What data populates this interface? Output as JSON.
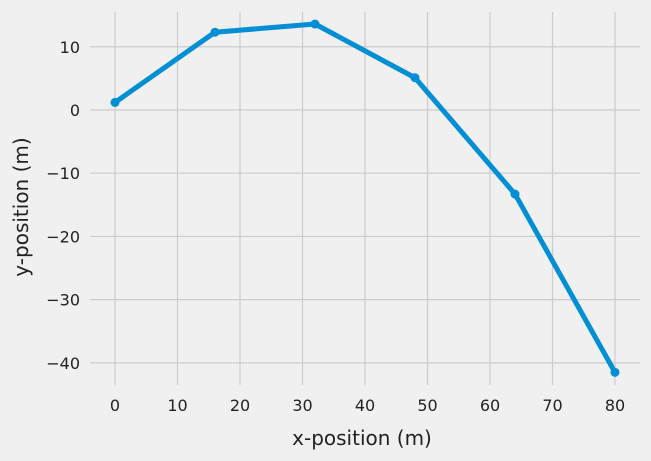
{
  "chart_data": {
    "type": "line",
    "title": "",
    "xlabel": "x-position (m)",
    "ylabel": "y-position (m)",
    "xlim": [
      -4,
      84
    ],
    "ylim": [
      -43.5,
      15.5
    ],
    "xticks": [
      0,
      10,
      20,
      30,
      40,
      50,
      60,
      70,
      80
    ],
    "yticks": [
      10,
      0,
      -10,
      -20,
      -30,
      -40
    ],
    "xtick_labels": [
      "0",
      "10",
      "20",
      "30",
      "40",
      "50",
      "60",
      "70",
      "80"
    ],
    "ytick_labels": [
      "10",
      "0",
      "−10",
      "−20",
      "−30",
      "−40"
    ],
    "grid": true,
    "series": [
      {
        "x": [
          0,
          16,
          32,
          48,
          64,
          80
        ],
        "y": [
          1.2,
          12.3,
          13.6,
          5.1,
          -13.3,
          -41.5
        ],
        "color": "#008fd5",
        "marker": "circle"
      }
    ],
    "style": {
      "background": "#f0f0f0",
      "grid_color": "#cbcbcb"
    }
  }
}
